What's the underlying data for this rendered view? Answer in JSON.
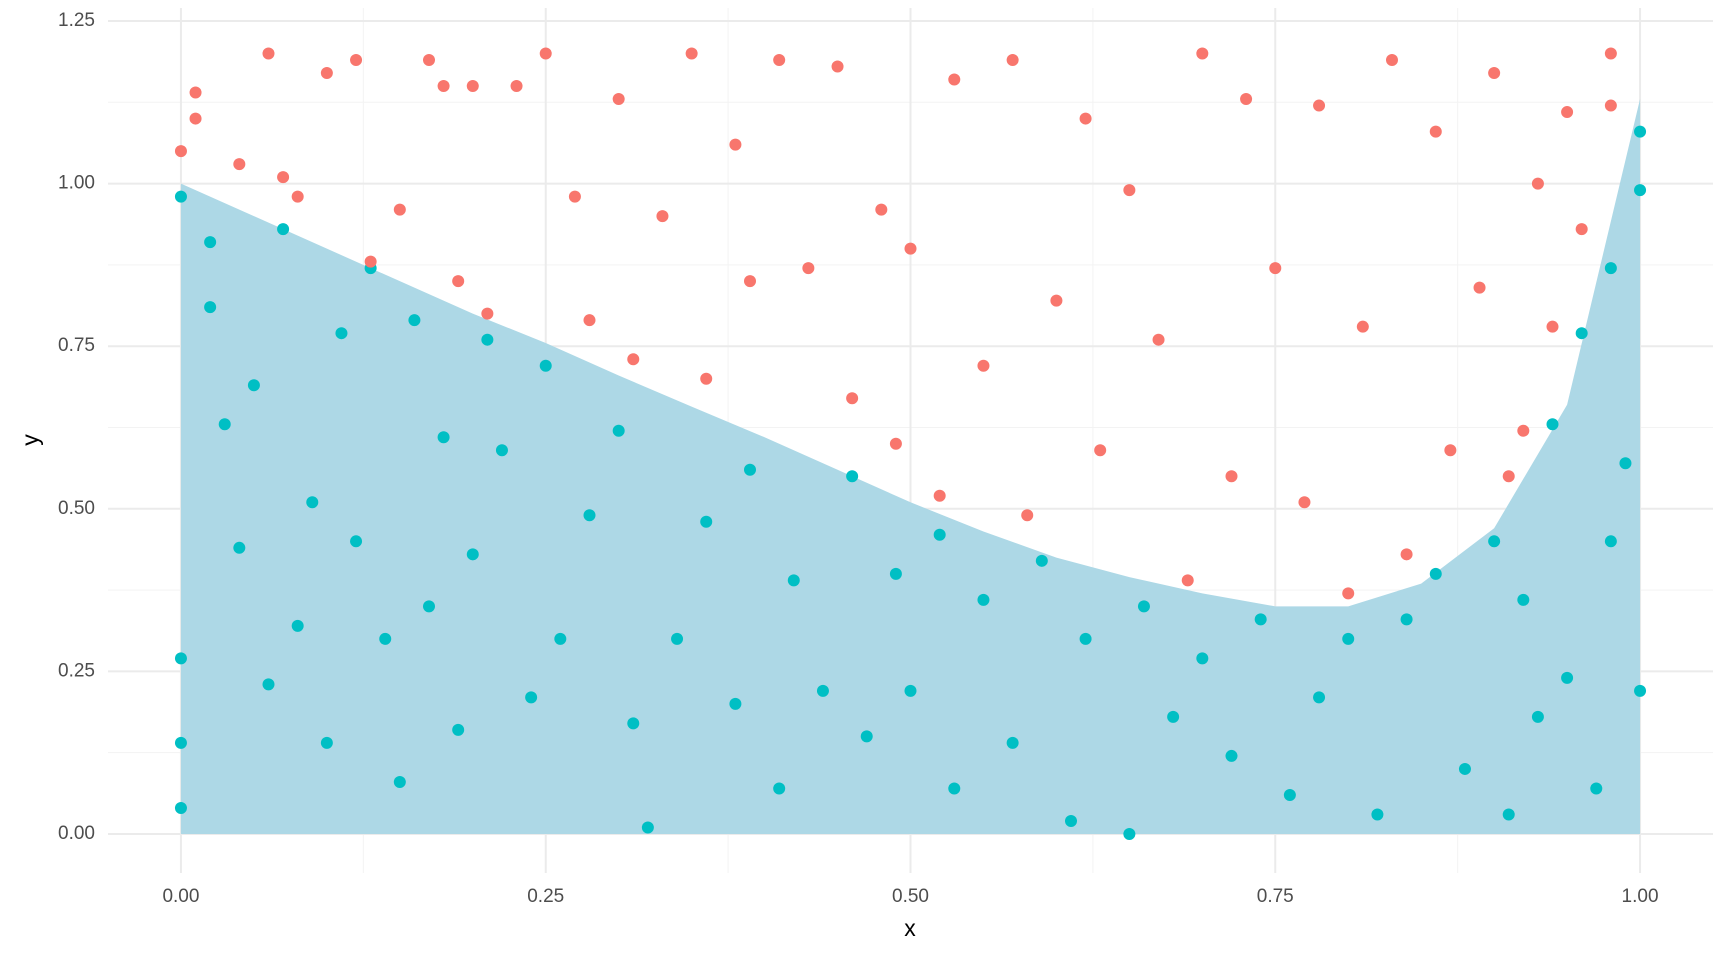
{
  "chart_data": {
    "type": "scatter",
    "x_label": "x",
    "y_label": "y",
    "xlim": [
      -0.05,
      1.05
    ],
    "ylim": [
      -0.06,
      1.27
    ],
    "xticks": [
      {
        "value": 0,
        "label": "0.00"
      },
      {
        "value": 0.25,
        "label": "0.25"
      },
      {
        "value": 0.5,
        "label": "0.50"
      },
      {
        "value": 0.75,
        "label": "0.75"
      },
      {
        "value": 1,
        "label": "1.00"
      }
    ],
    "yticks": [
      {
        "value": 0,
        "label": "0.00"
      },
      {
        "value": 0.25,
        "label": "0.25"
      },
      {
        "value": 0.5,
        "label": "0.50"
      },
      {
        "value": 0.75,
        "label": "0.75"
      },
      {
        "value": 1,
        "label": "1.00"
      },
      {
        "value": 1.25,
        "label": "1.25"
      }
    ],
    "xminor": [
      0.125,
      0.375,
      0.625,
      0.875
    ],
    "yminor": [
      0.125,
      0.375,
      0.625,
      0.875,
      1.125
    ],
    "grid": true,
    "area": {
      "color": "#add8e6",
      "x": [
        0,
        0.05,
        0.1,
        0.15,
        0.2,
        0.25,
        0.3,
        0.35,
        0.4,
        0.45,
        0.5,
        0.55,
        0.6,
        0.65,
        0.7,
        0.75,
        0.8,
        0.85,
        0.9,
        0.95,
        1.0
      ],
      "values": [
        1.0,
        0.95,
        0.9,
        0.85,
        0.8,
        0.755,
        0.705,
        0.657,
        0.61,
        0.56,
        0.51,
        0.465,
        0.425,
        0.395,
        0.37,
        0.35,
        0.35,
        0.385,
        0.47,
        0.66,
        1.13
      ]
    },
    "series": [
      {
        "color": "#00bfc4",
        "x": [
          0.0,
          0.0,
          0.0,
          0.0,
          0.02,
          0.02,
          0.03,
          0.04,
          0.05,
          0.06,
          0.07,
          0.08,
          0.09,
          0.1,
          0.11,
          0.12,
          0.13,
          0.14,
          0.15,
          0.16,
          0.17,
          0.18,
          0.19,
          0.2,
          0.21,
          0.22,
          0.24,
          0.25,
          0.26,
          0.28,
          0.3,
          0.31,
          0.32,
          0.34,
          0.36,
          0.38,
          0.39,
          0.41,
          0.42,
          0.44,
          0.46,
          0.47,
          0.49,
          0.5,
          0.52,
          0.53,
          0.55,
          0.57,
          0.59,
          0.61,
          0.62,
          0.65,
          0.66,
          0.68,
          0.7,
          0.72,
          0.74,
          0.76,
          0.78,
          0.8,
          0.82,
          0.84,
          0.86,
          0.88,
          0.9,
          0.91,
          0.92,
          0.93,
          0.94,
          0.95,
          0.96,
          0.97,
          0.98,
          0.98,
          0.99,
          1.0,
          1.0,
          1.0
        ],
        "values": [
          0.98,
          0.27,
          0.14,
          0.04,
          0.91,
          0.81,
          0.63,
          0.44,
          0.69,
          0.23,
          0.93,
          0.32,
          0.51,
          0.14,
          0.77,
          0.45,
          0.87,
          0.3,
          0.08,
          0.79,
          0.35,
          0.61,
          0.16,
          0.43,
          0.76,
          0.59,
          0.21,
          0.72,
          0.3,
          0.49,
          0.62,
          0.17,
          0.01,
          0.3,
          0.48,
          0.2,
          0.56,
          0.07,
          0.39,
          0.22,
          0.55,
          0.15,
          0.4,
          0.22,
          0.46,
          0.07,
          0.36,
          0.14,
          0.42,
          0.02,
          0.3,
          0.0,
          0.35,
          0.18,
          0.27,
          0.12,
          0.33,
          0.06,
          0.21,
          0.3,
          0.03,
          0.33,
          0.4,
          0.1,
          0.45,
          0.03,
          0.36,
          0.18,
          0.63,
          0.24,
          0.77,
          0.07,
          0.87,
          0.45,
          0.57,
          1.08,
          0.99,
          0.22
        ]
      },
      {
        "color": "#f8766d",
        "x": [
          0.0,
          0.01,
          0.01,
          0.04,
          0.06,
          0.07,
          0.08,
          0.1,
          0.12,
          0.13,
          0.15,
          0.17,
          0.18,
          0.19,
          0.2,
          0.21,
          0.23,
          0.25,
          0.27,
          0.28,
          0.3,
          0.31,
          0.33,
          0.35,
          0.36,
          0.38,
          0.39,
          0.41,
          0.43,
          0.45,
          0.46,
          0.48,
          0.49,
          0.5,
          0.52,
          0.53,
          0.55,
          0.57,
          0.58,
          0.6,
          0.62,
          0.63,
          0.65,
          0.67,
          0.69,
          0.7,
          0.72,
          0.73,
          0.75,
          0.77,
          0.78,
          0.8,
          0.81,
          0.83,
          0.84,
          0.86,
          0.87,
          0.89,
          0.9,
          0.91,
          0.93,
          0.94,
          0.95,
          0.96,
          0.98,
          0.98,
          0.92
        ],
        "values": [
          1.05,
          1.14,
          1.1,
          1.03,
          1.2,
          1.01,
          0.98,
          1.17,
          1.19,
          0.88,
          0.96,
          1.19,
          1.15,
          0.85,
          1.15,
          0.8,
          1.15,
          1.2,
          0.98,
          0.79,
          1.13,
          0.73,
          0.95,
          1.2,
          0.7,
          1.06,
          0.85,
          1.19,
          0.87,
          1.18,
          0.67,
          0.96,
          0.6,
          0.9,
          0.52,
          1.16,
          0.72,
          1.19,
          0.49,
          0.82,
          1.1,
          0.59,
          0.99,
          0.76,
          0.39,
          1.2,
          0.55,
          1.13,
          0.87,
          0.51,
          1.12,
          0.37,
          0.78,
          1.19,
          0.43,
          1.08,
          0.59,
          0.84,
          1.17,
          0.55,
          1.0,
          0.78,
          1.11,
          0.93,
          1.2,
          1.12,
          0.62
        ]
      }
    ]
  }
}
